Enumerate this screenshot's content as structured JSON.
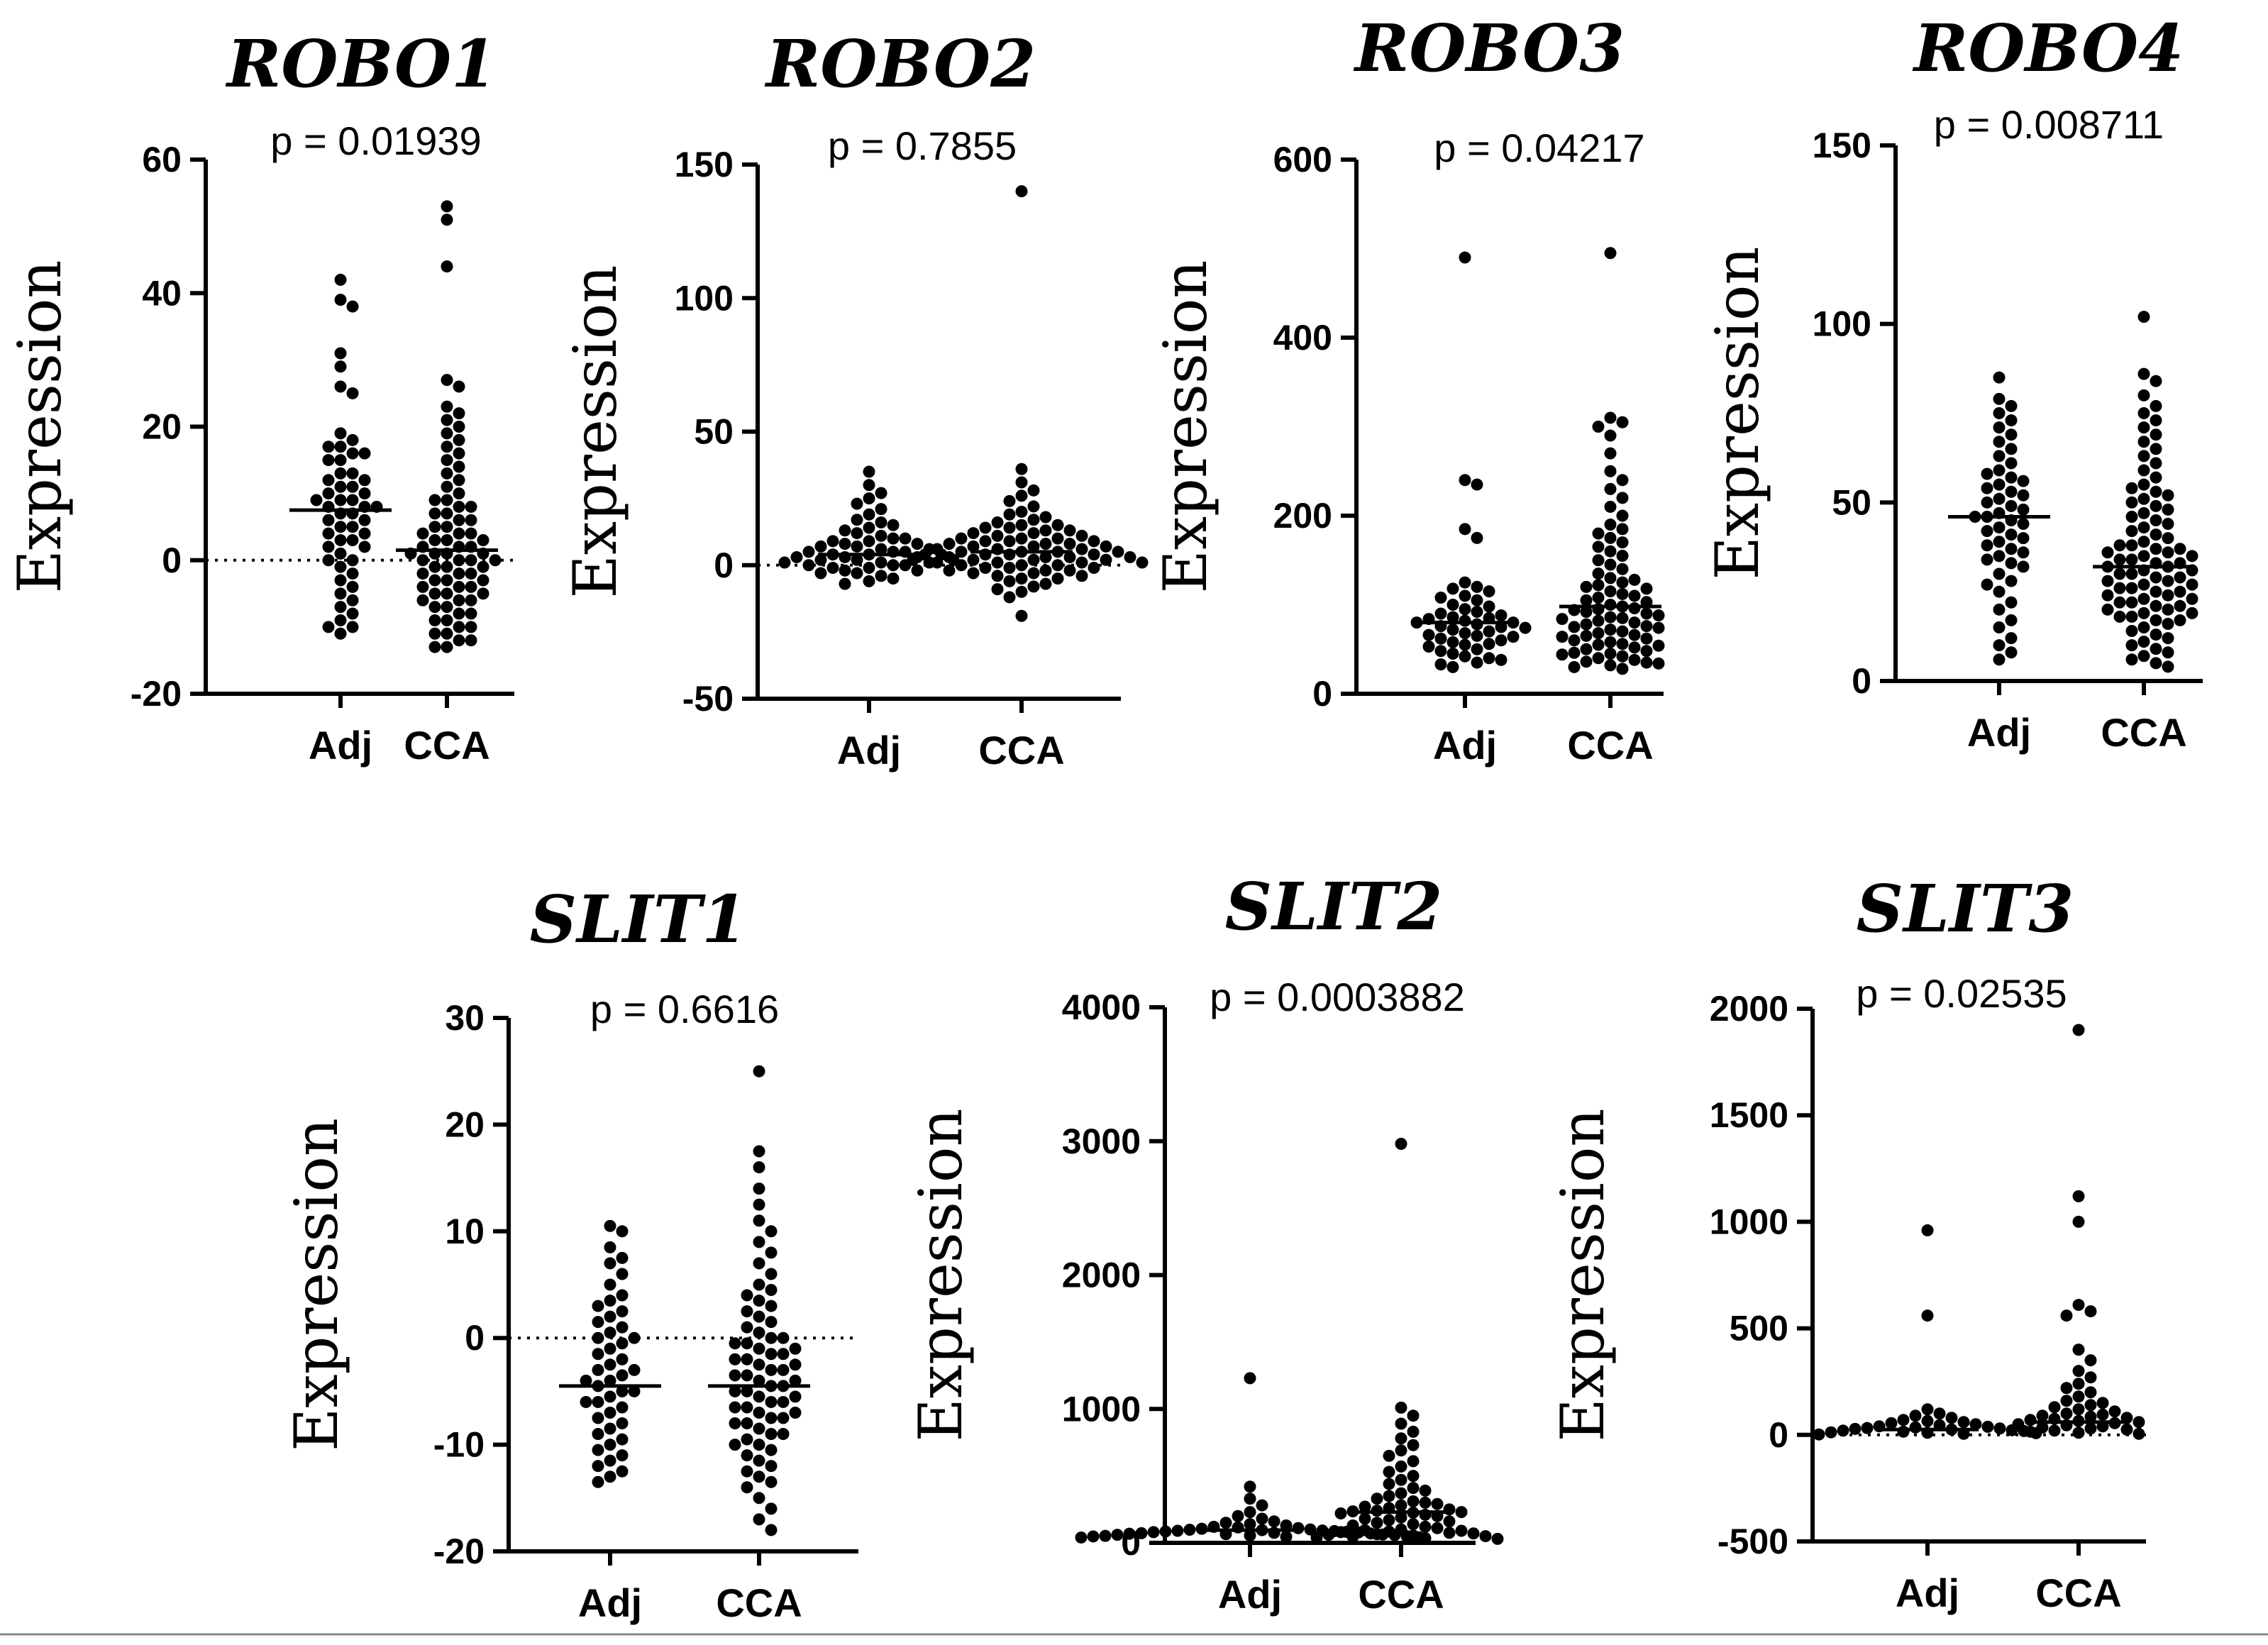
{
  "chart_data": [
    {
      "type": "scatter",
      "title": "ROBO1",
      "subtitle": "p = 0.01939",
      "ylabel": "Expression",
      "categories": [
        "Adj",
        "CCA"
      ],
      "ylim": [
        -20,
        60
      ],
      "yticks": [
        -20,
        0,
        20,
        40,
        60
      ],
      "reference_line": 0,
      "medians": [
        7.5,
        1.5
      ],
      "series": [
        {
          "name": "Adj",
          "values": [
            42,
            39,
            38,
            31,
            29,
            26,
            25,
            19,
            18,
            17,
            17,
            16,
            16,
            15,
            15,
            13,
            13,
            12,
            12,
            11,
            11,
            10,
            10,
            9,
            9,
            9,
            8,
            8,
            8,
            7,
            7,
            6,
            6,
            5,
            5,
            4,
            4,
            3,
            3,
            2,
            2,
            1,
            0,
            0,
            -1,
            -2,
            -3,
            -4,
            -5,
            -6,
            -7,
            -8,
            -9,
            -10,
            -10,
            -11
          ]
        },
        {
          "name": "CCA",
          "values": [
            53,
            51,
            44,
            27,
            26,
            23,
            22,
            21,
            20,
            19,
            18,
            17,
            16,
            15,
            14,
            13,
            12,
            11,
            10,
            9,
            9,
            8,
            8,
            7,
            7,
            6,
            6,
            5,
            5,
            4,
            4,
            4,
            3,
            3,
            3,
            2,
            2,
            2,
            1,
            1,
            1,
            1,
            0,
            0,
            0,
            0,
            -1,
            -1,
            -1,
            -2,
            -2,
            -2,
            -3,
            -3,
            -3,
            -4,
            -4,
            -4,
            -5,
            -5,
            -5,
            -6,
            -6,
            -6,
            -7,
            -7,
            -8,
            -8,
            -9,
            -9,
            -10,
            -10,
            -11,
            -11,
            -12,
            -12,
            -13,
            -13
          ]
        }
      ]
    },
    {
      "type": "scatter",
      "title": "ROBO2",
      "subtitle": "p = 0.7855",
      "ylabel": "Expression",
      "categories": [
        "Adj",
        "CCA"
      ],
      "ylim": [
        -50,
        150
      ],
      "yticks": [
        -50,
        0,
        50,
        100,
        150
      ],
      "reference_line": 0,
      "medians": [
        4,
        5
      ],
      "series": [
        {
          "name": "Adj",
          "values": [
            35,
            30,
            27,
            25,
            23,
            21,
            19,
            17,
            16,
            15,
            14,
            13,
            12,
            11,
            10,
            10,
            9,
            9,
            8,
            8,
            7,
            7,
            6,
            6,
            5,
            5,
            5,
            4,
            4,
            4,
            3,
            3,
            3,
            2,
            2,
            2,
            1,
            1,
            1,
            0,
            0,
            0,
            -1,
            -1,
            -2,
            -2,
            -3,
            -3,
            -4,
            -5,
            -6,
            -7
          ]
        },
        {
          "name": "CCA",
          "values": [
            140,
            36,
            31,
            28,
            26,
            24,
            22,
            20,
            19,
            18,
            17,
            16,
            15,
            15,
            14,
            14,
            13,
            13,
            12,
            12,
            11,
            11,
            10,
            10,
            10,
            9,
            9,
            9,
            8,
            8,
            8,
            7,
            7,
            7,
            6,
            6,
            6,
            5,
            5,
            5,
            5,
            4,
            4,
            4,
            4,
            3,
            3,
            3,
            3,
            2,
            2,
            2,
            2,
            1,
            1,
            1,
            1,
            0,
            0,
            0,
            -1,
            -1,
            -1,
            -2,
            -2,
            -2,
            -3,
            -3,
            -4,
            -4,
            -5,
            -5,
            -6,
            -7,
            -8,
            -9,
            -10,
            -12,
            -19
          ]
        }
      ]
    },
    {
      "type": "scatter",
      "title": "ROBO3",
      "subtitle": "p = 0.04217",
      "ylabel": "Expression",
      "categories": [
        "Adj",
        "CCA"
      ],
      "ylim": [
        0,
        600
      ],
      "yticks": [
        0,
        200,
        400,
        600
      ],
      "reference_line": null,
      "medians": [
        80,
        98
      ],
      "series": [
        {
          "name": "Adj",
          "values": [
            490,
            240,
            235,
            185,
            175,
            125,
            120,
            118,
            115,
            110,
            108,
            105,
            100,
            98,
            95,
            92,
            90,
            88,
            86,
            85,
            84,
            82,
            80,
            80,
            78,
            76,
            75,
            74,
            72,
            70,
            68,
            66,
            65,
            64,
            62,
            60,
            58,
            56,
            55,
            53,
            50,
            48,
            45,
            42,
            40,
            38,
            35,
            33,
            30
          ]
        },
        {
          "name": "CCA",
          "values": [
            495,
            310,
            305,
            300,
            290,
            270,
            250,
            240,
            230,
            220,
            210,
            200,
            190,
            185,
            180,
            175,
            170,
            165,
            160,
            155,
            150,
            145,
            140,
            135,
            130,
            128,
            125,
            122,
            120,
            118,
            115,
            112,
            110,
            108,
            105,
            103,
            100,
            98,
            96,
            95,
            94,
            92,
            90,
            88,
            86,
            85,
            84,
            82,
            80,
            78,
            76,
            75,
            74,
            72,
            70,
            68,
            66,
            65,
            64,
            62,
            60,
            58,
            56,
            55,
            54,
            52,
            50,
            48,
            46,
            45,
            44,
            42,
            40,
            38,
            36,
            35,
            34,
            32,
            30,
            28
          ]
        }
      ]
    },
    {
      "type": "scatter",
      "title": "ROBO4",
      "subtitle": "p = 0.008711",
      "ylabel": "Expression",
      "categories": [
        "Adj",
        "CCA"
      ],
      "ylim": [
        0,
        150
      ],
      "yticks": [
        0,
        50,
        100,
        150
      ],
      "reference_line": null,
      "medians": [
        46,
        32
      ],
      "series": [
        {
          "name": "Adj",
          "values": [
            85,
            79,
            77,
            75,
            73,
            71,
            69,
            67,
            65,
            63,
            61,
            59,
            58,
            57,
            56,
            55,
            54,
            53,
            52,
            51,
            50,
            49,
            48,
            47,
            46,
            46,
            45,
            44,
            43,
            42,
            41,
            40,
            39,
            38,
            37,
            36,
            35,
            34,
            33,
            32,
            30,
            28,
            27,
            25,
            22,
            20,
            17,
            15,
            12,
            10,
            8,
            6
          ]
        },
        {
          "name": "CCA",
          "values": [
            102,
            86,
            84,
            80,
            77,
            75,
            73,
            71,
            69,
            67,
            65,
            63,
            61,
            59,
            57,
            55,
            54,
            53,
            52,
            51,
            50,
            49,
            48,
            47,
            46,
            45,
            44,
            43,
            42,
            41,
            40,
            39,
            38,
            38,
            37,
            37,
            36,
            36,
            35,
            35,
            34,
            34,
            33,
            33,
            32,
            32,
            31,
            31,
            30,
            30,
            29,
            29,
            28,
            28,
            27,
            27,
            26,
            26,
            25,
            25,
            24,
            24,
            23,
            23,
            22,
            22,
            21,
            21,
            20,
            20,
            19,
            19,
            18,
            18,
            17,
            17,
            16,
            15,
            14,
            13,
            12,
            11,
            10,
            9,
            8,
            7,
            6,
            5,
            4
          ]
        }
      ]
    },
    {
      "type": "scatter",
      "title": "SLIT1",
      "subtitle": "p = 0.6616",
      "ylabel": "Expression",
      "categories": [
        "Adj",
        "CCA"
      ],
      "ylim": [
        -20,
        30
      ],
      "yticks": [
        -20,
        -10,
        0,
        10,
        20,
        30
      ],
      "reference_line": 0,
      "medians": [
        -4.5,
        -4.5
      ],
      "series": [
        {
          "name": "Adj",
          "values": [
            10.5,
            10,
            8.5,
            7.5,
            7,
            6,
            5,
            4,
            3.5,
            3,
            2.5,
            2,
            1.5,
            1,
            0.5,
            0,
            0,
            -0.5,
            -1,
            -1.5,
            -2,
            -2.5,
            -3,
            -3,
            -3.5,
            -4,
            -4,
            -4.5,
            -5,
            -5,
            -5.5,
            -6,
            -6,
            -6.5,
            -7,
            -7.5,
            -8,
            -8.5,
            -9,
            -9.5,
            -10,
            -10.5,
            -11,
            -11.5,
            -12,
            -12.5,
            -13,
            -13.5
          ]
        },
        {
          "name": "CCA",
          "values": [
            25,
            17.5,
            16,
            14,
            12.5,
            11,
            10,
            9,
            8,
            7,
            6,
            5,
            4.5,
            4,
            3.5,
            3,
            2.5,
            2,
            1.5,
            1,
            0.5,
            0,
            0,
            -0.5,
            -0.5,
            -1,
            -1,
            -1.5,
            -1.5,
            -2,
            -2,
            -2.5,
            -2.5,
            -3,
            -3,
            -3.5,
            -3.5,
            -4,
            -4,
            -4.5,
            -4.5,
            -5,
            -5,
            -5.5,
            -5.5,
            -6,
            -6,
            -6.5,
            -6.5,
            -7,
            -7,
            -7.5,
            -7.5,
            -8,
            -8,
            -8.5,
            -9,
            -9,
            -9.5,
            -10,
            -10,
            -10.5,
            -11,
            -11.5,
            -12,
            -12.5,
            -13,
            -13.5,
            -14,
            -15,
            -16,
            -17,
            -18
          ]
        }
      ]
    },
    {
      "type": "scatter",
      "title": "SLIT2",
      "subtitle": "p = 0.0003882",
      "ylabel": "Expression",
      "categories": [
        "Adj",
        "CCA"
      ],
      "ylim": [
        0,
        4000
      ],
      "yticks": [
        0,
        1000,
        2000,
        3000,
        4000
      ],
      "reference_line": null,
      "medians": [
        95,
        230
      ],
      "series": [
        {
          "name": "Adj",
          "values": [
            1230,
            420,
            330,
            280,
            230,
            200,
            180,
            160,
            150,
            140,
            130,
            120,
            115,
            110,
            105,
            100,
            98,
            95,
            92,
            90,
            88,
            85,
            82,
            80,
            78,
            75,
            72,
            70,
            68,
            65,
            62,
            60,
            58,
            55,
            52,
            50,
            48,
            45,
            42,
            40
          ]
        },
        {
          "name": "CCA",
          "values": [
            2980,
            1010,
            950,
            890,
            830,
            780,
            730,
            690,
            650,
            610,
            570,
            530,
            500,
            470,
            440,
            410,
            390,
            370,
            350,
            330,
            310,
            300,
            290,
            280,
            270,
            260,
            250,
            240,
            235,
            230,
            225,
            220,
            210,
            200,
            190,
            180,
            170,
            160,
            150,
            140,
            130,
            120,
            110,
            100,
            95,
            90,
            85,
            80,
            75,
            70,
            65,
            60,
            55,
            50,
            45,
            40,
            35,
            30
          ]
        }
      ]
    },
    {
      "type": "scatter",
      "title": "SLIT3",
      "subtitle": "p = 0.02535",
      "ylabel": "Expression",
      "categories": [
        "Adj",
        "CCA"
      ],
      "ylim": [
        -500,
        2000
      ],
      "yticks": [
        -500,
        0,
        500,
        1000,
        1500,
        2000
      ],
      "reference_line": 0,
      "medians": [
        25,
        60
      ],
      "series": [
        {
          "name": "Adj",
          "values": [
            960,
            560,
            120,
            100,
            90,
            80,
            70,
            65,
            60,
            55,
            50,
            45,
            40,
            38,
            35,
            32,
            30,
            28,
            25,
            22,
            20,
            18,
            15,
            12,
            10,
            8,
            5,
            2
          ]
        },
        {
          "name": "CCA",
          "values": [
            1900,
            1120,
            1000,
            610,
            580,
            560,
            400,
            350,
            300,
            270,
            240,
            220,
            200,
            180,
            160,
            150,
            140,
            130,
            120,
            110,
            100,
            95,
            90,
            85,
            80,
            75,
            70,
            65,
            60,
            55,
            50,
            45,
            40,
            35,
            30,
            25,
            20,
            15,
            10,
            5
          ]
        }
      ]
    }
  ]
}
